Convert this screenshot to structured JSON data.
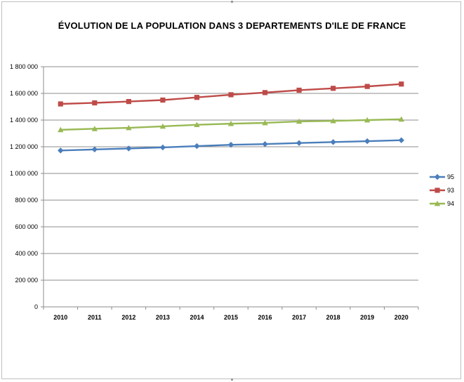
{
  "chart_data": {
    "type": "line",
    "title": "ÉVOLUTION DE LA POPULATION DANS 3 DEPARTEMENTS  D'ILE DE FRANCE",
    "xlabel": "",
    "ylabel": "",
    "x": [
      "2010",
      "2011",
      "2012",
      "2013",
      "2014",
      "2015",
      "2016",
      "2017",
      "2018",
      "2019",
      "2020"
    ],
    "ylim": [
      0,
      1800000
    ],
    "yticks": [
      0,
      200000,
      400000,
      600000,
      800000,
      1000000,
      1200000,
      1400000,
      1600000,
      1800000
    ],
    "ytick_labels": [
      "0",
      "200 000",
      "400 000",
      "600 000",
      "800 000",
      "1 000 000",
      "1 200 000",
      "1 400 000",
      "1 600 000",
      "1 800 000"
    ],
    "grid": true,
    "legend_position": "right",
    "series": [
      {
        "name": "95",
        "color": "#4a7ebb",
        "marker": "diamond",
        "values": [
          1172000,
          1180000,
          1187000,
          1195000,
          1205000,
          1215000,
          1220000,
          1228000,
          1235000,
          1242000,
          1249000
        ]
      },
      {
        "name": "93",
        "color": "#be4b48",
        "marker": "square",
        "values": [
          1521000,
          1529000,
          1539000,
          1550000,
          1570000,
          1590000,
          1606000,
          1624000,
          1638000,
          1652000,
          1670000
        ]
      },
      {
        "name": "94",
        "color": "#98b954",
        "marker": "triangle",
        "values": [
          1327000,
          1335000,
          1342000,
          1353000,
          1365000,
          1373000,
          1379000,
          1390000,
          1394000,
          1400000,
          1406000
        ]
      }
    ]
  }
}
